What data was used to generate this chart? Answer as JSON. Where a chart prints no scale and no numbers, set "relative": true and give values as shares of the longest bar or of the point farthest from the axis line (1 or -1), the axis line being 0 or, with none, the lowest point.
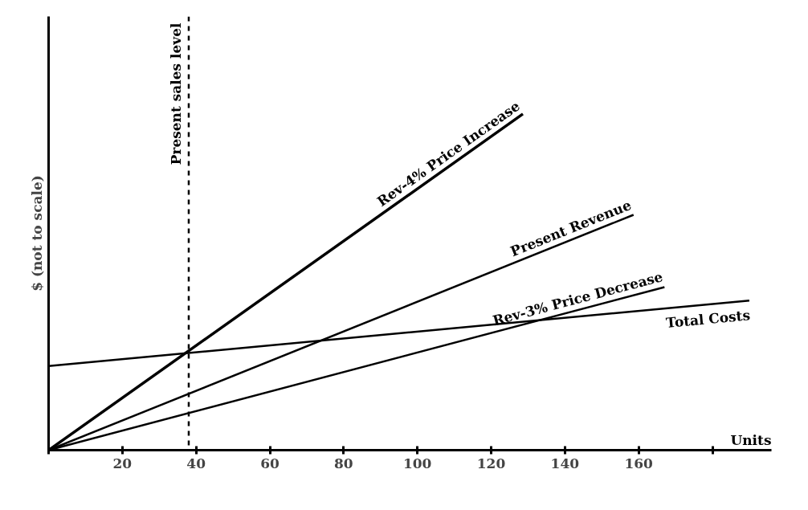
{
  "chart_data": {
    "type": "line",
    "relative": true,
    "xlabel": "Units",
    "ylabel": "$ (not to scale)",
    "xlim": [
      0,
      196
    ],
    "xticks": [
      {
        "value": 0,
        "label": null
      },
      20,
      40,
      60,
      80,
      100,
      120,
      140,
      160,
      {
        "value": 180,
        "label": null
      }
    ],
    "series": [
      {
        "name": "Rev-4% Price Increase",
        "color": "#000000",
        "x": [
          0,
          128.6
        ],
        "values": [
          0,
          1
        ]
      },
      {
        "name": "Present Revenue",
        "color": "#000000",
        "x": [
          0,
          158.6
        ],
        "values": [
          0,
          0.7
        ]
      },
      {
        "name": "Rev-3% Price Decrease",
        "color": "#000000",
        "x": [
          0,
          167
        ],
        "values": [
          0,
          0.485
        ]
      },
      {
        "name": "Total Costs",
        "color": "#000000",
        "x": [
          0,
          190
        ],
        "values": [
          0.25,
          0.445
        ]
      }
    ],
    "ref_lines": [
      {
        "axis": "x",
        "value": 38,
        "label": "Present sales level",
        "line_style": "dashed"
      }
    ],
    "legend": false,
    "grid": false,
    "marker": "none",
    "line_style": "solid"
  }
}
